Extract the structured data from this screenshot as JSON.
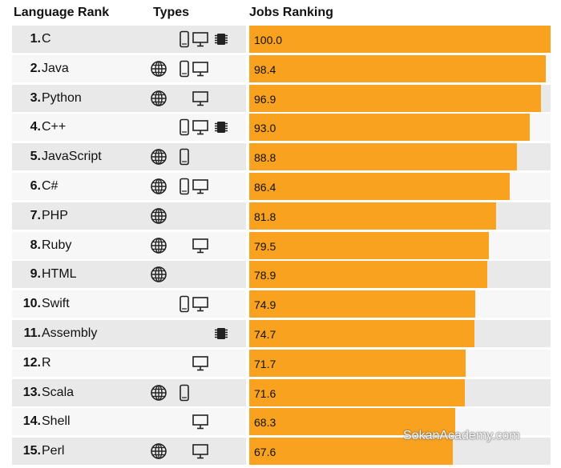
{
  "headers": {
    "rank": "Language Rank",
    "types": "Types",
    "jobs": "Jobs Ranking"
  },
  "colors": {
    "bar": "#f9a21f"
  },
  "watermark": "SokanAcademy.com",
  "chart_data": {
    "type": "bar",
    "orientation": "horizontal",
    "title": "",
    "xlim": [
      0,
      100
    ],
    "series": [
      {
        "values": [
          100.0,
          98.4,
          96.9,
          93.0,
          88.8,
          86.4,
          81.8,
          79.5,
          78.9,
          74.9,
          74.7,
          71.7,
          71.6,
          68.3,
          67.6
        ]
      }
    ],
    "rows": [
      {
        "rank": "1.",
        "language": "C",
        "types": [
          "mobile",
          "desktop",
          "embedded"
        ],
        "value": 100.0,
        "label": "100.0"
      },
      {
        "rank": "2.",
        "language": "Java",
        "types": [
          "web",
          "mobile",
          "desktop"
        ],
        "value": 98.4,
        "label": "98.4"
      },
      {
        "rank": "3.",
        "language": "Python",
        "types": [
          "web",
          "desktop"
        ],
        "value": 96.9,
        "label": "96.9"
      },
      {
        "rank": "4.",
        "language": "C++",
        "types": [
          "mobile",
          "desktop",
          "embedded"
        ],
        "value": 93.0,
        "label": "93.0"
      },
      {
        "rank": "5.",
        "language": "JavaScript",
        "types": [
          "web",
          "mobile"
        ],
        "value": 88.8,
        "label": "88.8"
      },
      {
        "rank": "6.",
        "language": "C#",
        "types": [
          "web",
          "mobile",
          "desktop"
        ],
        "value": 86.4,
        "label": "86.4"
      },
      {
        "rank": "7.",
        "language": "PHP",
        "types": [
          "web"
        ],
        "value": 81.8,
        "label": "81.8"
      },
      {
        "rank": "8.",
        "language": "Ruby",
        "types": [
          "web",
          "desktop"
        ],
        "value": 79.5,
        "label": "79.5"
      },
      {
        "rank": "9.",
        "language": "HTML",
        "types": [
          "web"
        ],
        "value": 78.9,
        "label": "78.9"
      },
      {
        "rank": "10.",
        "language": "Swift",
        "types": [
          "mobile",
          "desktop"
        ],
        "value": 74.9,
        "label": "74.9"
      },
      {
        "rank": "11.",
        "language": "Assembly",
        "types": [
          "embedded"
        ],
        "value": 74.7,
        "label": "74.7"
      },
      {
        "rank": "12.",
        "language": "R",
        "types": [
          "desktop"
        ],
        "value": 71.7,
        "label": "71.7"
      },
      {
        "rank": "13.",
        "language": "Scala",
        "types": [
          "web",
          "mobile"
        ],
        "value": 71.6,
        "label": "71.6"
      },
      {
        "rank": "14.",
        "language": "Shell",
        "types": [
          "desktop"
        ],
        "value": 68.3,
        "label": "68.3"
      },
      {
        "rank": "15.",
        "language": "Perl",
        "types": [
          "web",
          "desktop"
        ],
        "value": 67.6,
        "label": "67.6"
      }
    ]
  }
}
